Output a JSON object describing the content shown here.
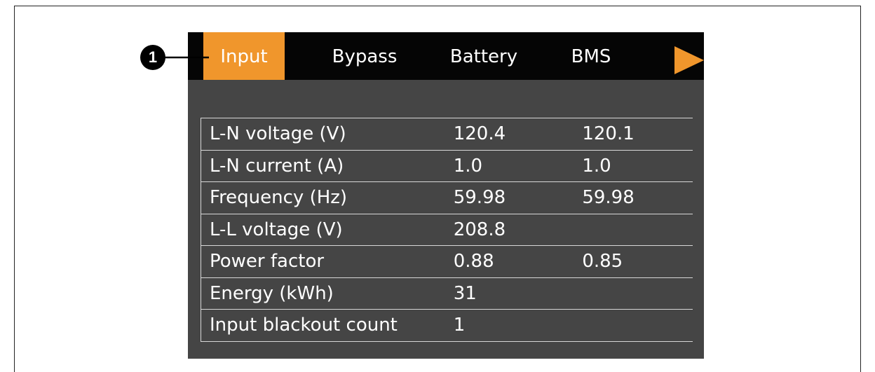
{
  "tabs": [
    "Input",
    "Bypass",
    "Battery",
    "BMS"
  ],
  "callout": "1",
  "table": {
    "rows": [
      [
        "L-N voltage (V)",
        "120.4",
        "120.1"
      ],
      [
        "L-N current (A)",
        "1.0",
        "1.0"
      ],
      [
        "Frequency (Hz)",
        "59.98",
        "59.98"
      ],
      [
        "L-L voltage (V)",
        "208.8"
      ],
      [
        "Power factor",
        "0.88",
        "0.85"
      ],
      [
        "Energy (kWh)",
        "31"
      ],
      [
        "Input blackout count",
        "1"
      ]
    ]
  }
}
